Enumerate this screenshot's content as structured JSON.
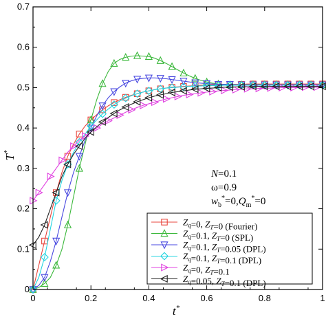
{
  "chart_data": {
    "type": "line",
    "xlabel": "t*",
    "ylabel": "T*",
    "xlim": [
      0,
      1
    ],
    "ylim": [
      0,
      0.7
    ],
    "xticks": [
      "0",
      "0.2",
      "0.4",
      "0.6",
      "0.8",
      "1"
    ],
    "yticks": [
      "0",
      "0.1",
      "0.2",
      "0.3",
      "0.4",
      "0.5",
      "0.6",
      "0.7"
    ],
    "grid": false,
    "legend_position": "bottom-right",
    "annotations": [
      "N=0.1",
      "ω=0.9",
      "w*b=0, Q*m=0"
    ],
    "series": [
      {
        "name": "Zq=0, ZT=0 (Fourier)",
        "color": "#e8453c",
        "marker": "square",
        "x": [
          0,
          0.02,
          0.04,
          0.06,
          0.08,
          0.1,
          0.12,
          0.14,
          0.16,
          0.18,
          0.2,
          0.22,
          0.24,
          0.26,
          0.28,
          0.3,
          0.32,
          0.34,
          0.36,
          0.38,
          0.4,
          0.42,
          0.44,
          0.46,
          0.48,
          0.5,
          0.52,
          0.54,
          0.56,
          0.58,
          0.6,
          0.62,
          0.64,
          0.66,
          0.68,
          0.7,
          0.72,
          0.74,
          0.76,
          0.78,
          0.8,
          0.82,
          0.84,
          0.86,
          0.88,
          0.9,
          0.92,
          0.94,
          0.96,
          0.98,
          1
        ],
        "y": [
          0,
          0.06,
          0.12,
          0.18,
          0.24,
          0.29,
          0.33,
          0.36,
          0.385,
          0.405,
          0.42,
          0.433,
          0.445,
          0.455,
          0.463,
          0.47,
          0.476,
          0.481,
          0.485,
          0.489,
          0.492,
          0.495,
          0.497,
          0.499,
          0.501,
          0.502,
          0.503,
          0.504,
          0.505,
          0.506,
          0.506,
          0.507,
          0.507,
          0.508,
          0.508,
          0.508,
          0.508,
          0.509,
          0.509,
          0.509,
          0.509,
          0.509,
          0.509,
          0.509,
          0.509,
          0.509,
          0.509,
          0.509,
          0.509,
          0.509,
          0.509
        ]
      },
      {
        "name": "Zq=0.1, ZT=0 (SPL)",
        "color": "#3cb83c",
        "marker": "triangle-up",
        "x": [
          0,
          0.02,
          0.04,
          0.06,
          0.08,
          0.1,
          0.12,
          0.14,
          0.16,
          0.18,
          0.2,
          0.22,
          0.24,
          0.26,
          0.28,
          0.3,
          0.32,
          0.34,
          0.36,
          0.38,
          0.4,
          0.42,
          0.44,
          0.46,
          0.48,
          0.5,
          0.52,
          0.54,
          0.56,
          0.58,
          0.6,
          0.62,
          0.64,
          0.66,
          0.68,
          0.7,
          0.72,
          0.74,
          0.76,
          0.78,
          0.8,
          0.82,
          0.84,
          0.86,
          0.88,
          0.9,
          0.92,
          0.94,
          0.96,
          0.98,
          1
        ],
        "y": [
          0,
          0.005,
          0.015,
          0.03,
          0.06,
          0.1,
          0.16,
          0.23,
          0.3,
          0.36,
          0.42,
          0.47,
          0.51,
          0.54,
          0.56,
          0.57,
          0.575,
          0.578,
          0.579,
          0.578,
          0.577,
          0.573,
          0.567,
          0.56,
          0.552,
          0.544,
          0.536,
          0.529,
          0.523,
          0.518,
          0.514,
          0.511,
          0.509,
          0.508,
          0.507,
          0.507,
          0.507,
          0.507,
          0.507,
          0.507,
          0.507,
          0.507,
          0.507,
          0.507,
          0.507,
          0.507,
          0.507,
          0.507,
          0.507,
          0.507,
          0.507
        ]
      },
      {
        "name": "Zq=0.1, ZT=0.05 (DPL)",
        "color": "#4a4ae0",
        "marker": "triangle-down",
        "x": [
          0,
          0.02,
          0.04,
          0.06,
          0.08,
          0.1,
          0.12,
          0.14,
          0.16,
          0.18,
          0.2,
          0.22,
          0.24,
          0.26,
          0.28,
          0.3,
          0.32,
          0.34,
          0.36,
          0.38,
          0.4,
          0.42,
          0.44,
          0.46,
          0.48,
          0.5,
          0.52,
          0.54,
          0.56,
          0.58,
          0.6,
          0.62,
          0.64,
          0.66,
          0.68,
          0.7,
          0.72,
          0.74,
          0.76,
          0.78,
          0.8,
          0.82,
          0.84,
          0.86,
          0.88,
          0.9,
          0.92,
          0.94,
          0.96,
          0.98,
          1
        ],
        "y": [
          0,
          0.01,
          0.03,
          0.07,
          0.12,
          0.18,
          0.24,
          0.29,
          0.33,
          0.37,
          0.4,
          0.43,
          0.455,
          0.475,
          0.49,
          0.502,
          0.511,
          0.517,
          0.521,
          0.523,
          0.524,
          0.524,
          0.523,
          0.522,
          0.52,
          0.518,
          0.516,
          0.514,
          0.512,
          0.511,
          0.51,
          0.509,
          0.508,
          0.508,
          0.508,
          0.507,
          0.507,
          0.507,
          0.507,
          0.507,
          0.507,
          0.507,
          0.507,
          0.507,
          0.507,
          0.507,
          0.507,
          0.507,
          0.507,
          0.507,
          0.507
        ]
      },
      {
        "name": "Zq=0.1, ZT=0.1 (DPL)",
        "color": "#22d4e0",
        "marker": "diamond",
        "x": [
          0,
          0.02,
          0.04,
          0.06,
          0.08,
          0.1,
          0.12,
          0.14,
          0.16,
          0.18,
          0.2,
          0.22,
          0.24,
          0.26,
          0.28,
          0.3,
          0.32,
          0.34,
          0.36,
          0.38,
          0.4,
          0.42,
          0.44,
          0.46,
          0.48,
          0.5,
          0.52,
          0.54,
          0.56,
          0.58,
          0.6,
          0.62,
          0.64,
          0.66,
          0.68,
          0.7,
          0.72,
          0.74,
          0.76,
          0.78,
          0.8,
          0.82,
          0.84,
          0.86,
          0.88,
          0.9,
          0.92,
          0.94,
          0.96,
          0.98,
          1
        ],
        "y": [
          0,
          0.03,
          0.08,
          0.15,
          0.22,
          0.27,
          0.31,
          0.34,
          0.365,
          0.385,
          0.405,
          0.42,
          0.435,
          0.447,
          0.458,
          0.467,
          0.474,
          0.48,
          0.485,
          0.489,
          0.492,
          0.495,
          0.497,
          0.499,
          0.5,
          0.501,
          0.502,
          0.503,
          0.504,
          0.504,
          0.505,
          0.505,
          0.505,
          0.506,
          0.506,
          0.506,
          0.506,
          0.506,
          0.506,
          0.506,
          0.506,
          0.506,
          0.506,
          0.506,
          0.506,
          0.506,
          0.506,
          0.506,
          0.506,
          0.506,
          0.506
        ]
      },
      {
        "name": "Zq=0, ZT=0.1",
        "color": "#e040e0",
        "marker": "triangle-right",
        "x": [
          0,
          0.01,
          0.02,
          0.04,
          0.06,
          0.08,
          0.1,
          0.12,
          0.14,
          0.16,
          0.18,
          0.2,
          0.22,
          0.24,
          0.26,
          0.28,
          0.3,
          0.32,
          0.34,
          0.36,
          0.38,
          0.4,
          0.42,
          0.44,
          0.46,
          0.48,
          0.5,
          0.52,
          0.54,
          0.56,
          0.58,
          0.6,
          0.62,
          0.64,
          0.66,
          0.68,
          0.7,
          0.72,
          0.74,
          0.76,
          0.78,
          0.8,
          0.82,
          0.84,
          0.86,
          0.88,
          0.9,
          0.92,
          0.94,
          0.96,
          0.98,
          1
        ],
        "y": [
          0.22,
          0.23,
          0.24,
          0.26,
          0.28,
          0.3,
          0.32,
          0.34,
          0.355,
          0.37,
          0.38,
          0.39,
          0.4,
          0.41,
          0.418,
          0.425,
          0.432,
          0.439,
          0.445,
          0.451,
          0.456,
          0.46,
          0.464,
          0.468,
          0.472,
          0.475,
          0.478,
          0.481,
          0.483,
          0.485,
          0.487,
          0.489,
          0.49,
          0.492,
          0.493,
          0.494,
          0.495,
          0.496,
          0.497,
          0.497,
          0.498,
          0.498,
          0.499,
          0.499,
          0.5,
          0.5,
          0.5,
          0.5,
          0.501,
          0.501,
          0.501,
          0.501
        ]
      },
      {
        "name": "Zq=0.05, ZT=0.1 (DPL)",
        "color": "#222222",
        "marker": "triangle-left",
        "x": [
          0,
          0.02,
          0.04,
          0.06,
          0.08,
          0.1,
          0.12,
          0.14,
          0.16,
          0.18,
          0.2,
          0.22,
          0.24,
          0.26,
          0.28,
          0.3,
          0.32,
          0.34,
          0.36,
          0.38,
          0.4,
          0.42,
          0.44,
          0.46,
          0.48,
          0.5,
          0.52,
          0.54,
          0.56,
          0.58,
          0.6,
          0.62,
          0.64,
          0.66,
          0.68,
          0.7,
          0.72,
          0.74,
          0.76,
          0.78,
          0.8,
          0.82,
          0.84,
          0.86,
          0.88,
          0.9,
          0.92,
          0.94,
          0.96,
          0.98,
          1
        ],
        "y": [
          0.11,
          0.13,
          0.16,
          0.2,
          0.24,
          0.28,
          0.31,
          0.335,
          0.355,
          0.375,
          0.39,
          0.403,
          0.415,
          0.426,
          0.436,
          0.445,
          0.452,
          0.459,
          0.465,
          0.47,
          0.475,
          0.479,
          0.482,
          0.485,
          0.488,
          0.49,
          0.492,
          0.494,
          0.496,
          0.497,
          0.498,
          0.499,
          0.5,
          0.501,
          0.501,
          0.502,
          0.502,
          0.502,
          0.503,
          0.503,
          0.503,
          0.503,
          0.503,
          0.503,
          0.503,
          0.503,
          0.503,
          0.503,
          0.503,
          0.503,
          0.503
        ]
      }
    ]
  }
}
